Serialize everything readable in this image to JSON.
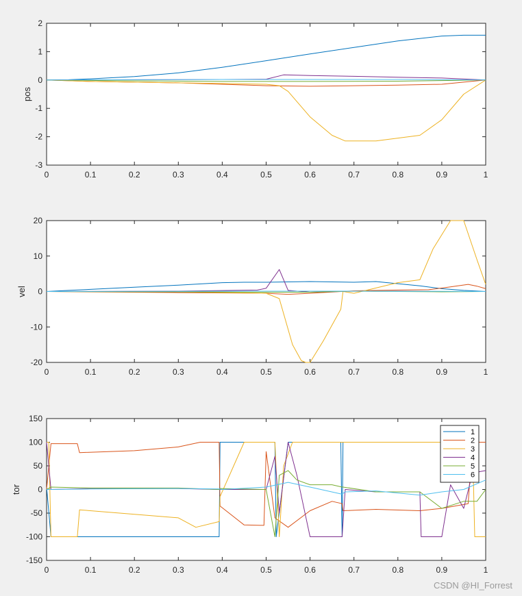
{
  "watermark": "CSDN @HI_Forrest",
  "colors": [
    "#0072BD",
    "#D95319",
    "#EDB120",
    "#7E2F8E",
    "#77AC30",
    "#4DBEEE"
  ],
  "chart_data": [
    {
      "type": "line",
      "ylabel": "pos",
      "xlim": [
        0,
        1
      ],
      "ylim": [
        -3,
        2
      ],
      "xticks": [
        0,
        0.1,
        0.2,
        0.3,
        0.4,
        0.5,
        0.6,
        0.7,
        0.8,
        0.9,
        1
      ],
      "xtick_labels": [
        "0",
        "0.1",
        "0.2",
        "0.3",
        "0.4",
        "0.5",
        "0.6",
        "0.7",
        "0.8",
        "0.9",
        "1"
      ],
      "yticks": [
        -3,
        -2,
        -1,
        0,
        1,
        2
      ],
      "ytick_labels": [
        "-3",
        "-2",
        "-1",
        "0",
        "1",
        "2"
      ],
      "grid": false,
      "legend": null,
      "series": [
        {
          "x": [
            0,
            0.05,
            0.1,
            0.2,
            0.3,
            0.4,
            0.5,
            0.6,
            0.7,
            0.8,
            0.9,
            0.95,
            1
          ],
          "y": [
            0,
            0.01,
            0.04,
            0.12,
            0.25,
            0.45,
            0.68,
            0.92,
            1.15,
            1.38,
            1.55,
            1.58,
            1.58
          ]
        },
        {
          "x": [
            0,
            0.1,
            0.3,
            0.4,
            0.5,
            0.6,
            0.7,
            0.8,
            0.9,
            1
          ],
          "y": [
            0,
            -0.05,
            -0.1,
            -0.15,
            -0.2,
            -0.22,
            -0.2,
            -0.18,
            -0.15,
            0
          ]
        },
        {
          "x": [
            0,
            0.1,
            0.3,
            0.5,
            0.53,
            0.55,
            0.6,
            0.65,
            0.68,
            0.72,
            0.75,
            0.85,
            0.9,
            0.95,
            1
          ],
          "y": [
            0,
            -0.05,
            -0.1,
            -0.15,
            -0.2,
            -0.4,
            -1.3,
            -1.95,
            -2.15,
            -2.15,
            -2.15,
            -1.95,
            -1.4,
            -0.5,
            0
          ]
        },
        {
          "x": [
            0,
            0.2,
            0.4,
            0.5,
            0.54,
            0.6,
            0.7,
            0.8,
            0.9,
            1
          ],
          "y": [
            0,
            0.01,
            0.02,
            0.03,
            0.18,
            0.16,
            0.13,
            0.1,
            0.07,
            0
          ]
        },
        {
          "x": [
            0,
            0.2,
            0.4,
            0.6,
            0.8,
            1
          ],
          "y": [
            0,
            -0.03,
            -0.05,
            -0.05,
            -0.04,
            0
          ]
        },
        {
          "x": [
            0,
            0.2,
            0.4,
            0.6,
            0.8,
            1
          ],
          "y": [
            0,
            0.01,
            0.02,
            0.02,
            0.02,
            0
          ]
        }
      ]
    },
    {
      "type": "line",
      "ylabel": "vel",
      "xlim": [
        0,
        1
      ],
      "ylim": [
        -20,
        20
      ],
      "xticks": [
        0,
        0.1,
        0.2,
        0.3,
        0.4,
        0.5,
        0.6,
        0.7,
        0.8,
        0.9,
        1
      ],
      "xtick_labels": [
        "0",
        "0.1",
        "0.2",
        "0.3",
        "0.4",
        "0.5",
        "0.6",
        "0.7",
        "0.8",
        "0.9",
        "1"
      ],
      "yticks": [
        -20,
        -10,
        0,
        10,
        20
      ],
      "ytick_labels": [
        "-20",
        "-10",
        "0",
        "10",
        "20"
      ],
      "grid": false,
      "legend": null,
      "series": [
        {
          "x": [
            0,
            0.05,
            0.1,
            0.2,
            0.3,
            0.4,
            0.45,
            0.5,
            0.6,
            0.7,
            0.75,
            0.8,
            0.85,
            0.9,
            0.95,
            1
          ],
          "y": [
            0,
            0.3,
            0.6,
            1.2,
            1.8,
            2.5,
            2.6,
            2.6,
            2.8,
            2.6,
            2.8,
            2.2,
            1.6,
            0.8,
            0.3,
            0
          ]
        },
        {
          "x": [
            0,
            0.3,
            0.5,
            0.55,
            0.6,
            0.7,
            0.8,
            0.87,
            0.92,
            0.96,
            0.98,
            1
          ],
          "y": [
            0,
            -0.3,
            -0.5,
            -0.8,
            -0.5,
            0.2,
            0.4,
            0.5,
            1.3,
            2.0,
            1.5,
            0.8
          ]
        },
        {
          "x": [
            0,
            0.3,
            0.5,
            0.53,
            0.56,
            0.58,
            0.59,
            0.6,
            0.63,
            0.67,
            0.675,
            0.7,
            0.8,
            0.85,
            0.88,
            0.92,
            0.95,
            0.98,
            1
          ],
          "y": [
            0,
            -0.1,
            -0.5,
            -2,
            -15,
            -19.5,
            -20,
            -20,
            -14,
            -5,
            0,
            -0.5,
            2.5,
            3.3,
            12,
            20,
            20,
            9,
            2
          ]
        },
        {
          "x": [
            0,
            0.3,
            0.48,
            0.5,
            0.53,
            0.55,
            0.6,
            0.7,
            0.8,
            0.9,
            1
          ],
          "y": [
            0,
            0.1,
            0.4,
            0.9,
            6.2,
            0.3,
            -0.2,
            0.1,
            0.1,
            0,
            0
          ]
        },
        {
          "x": [
            0,
            0.3,
            0.5,
            0.6,
            0.7,
            0.8,
            0.9,
            1
          ],
          "y": [
            0,
            -0.1,
            -0.2,
            -0.2,
            0.1,
            0,
            -0.1,
            0
          ]
        },
        {
          "x": [
            0,
            0.3,
            0.5,
            0.6,
            0.7,
            0.8,
            0.9,
            1
          ],
          "y": [
            0,
            0.05,
            0.1,
            0.1,
            0.1,
            0.05,
            0.05,
            0
          ]
        }
      ]
    },
    {
      "type": "line",
      "ylabel": "tor",
      "xlim": [
        0,
        1
      ],
      "ylim": [
        -150,
        150
      ],
      "xticks": [
        0,
        0.1,
        0.2,
        0.3,
        0.4,
        0.5,
        0.6,
        0.7,
        0.8,
        0.9,
        1
      ],
      "xtick_labels": [
        "0",
        "0.1",
        "0.2",
        "0.3",
        "0.4",
        "0.5",
        "0.6",
        "0.7",
        "0.8",
        "0.9",
        "1"
      ],
      "yticks": [
        -150,
        -100,
        -50,
        0,
        50,
        100,
        150
      ],
      "ytick_labels": [
        "-150",
        "-100",
        "-50",
        "0",
        "50",
        "100",
        "150"
      ],
      "grid": false,
      "legend": "top-right",
      "legend_entries": [
        "1",
        "2",
        "3",
        "4",
        "5",
        "6"
      ],
      "series": [
        {
          "name": "1",
          "x": [
            0,
            0.01,
            0.07,
            0.2,
            0.393,
            0.395,
            0.5,
            0.52,
            0.523,
            0.55,
            0.6,
            0.67,
            0.673,
            0.675,
            0.74,
            0.75,
            0.753,
            0.85,
            0.87,
            0.9,
            0.95,
            1
          ],
          "y": [
            5,
            -100,
            -100,
            -100,
            -100,
            100,
            100,
            100,
            -100,
            100,
            100,
            100,
            -100,
            100,
            100,
            100,
            100,
            100,
            100,
            100,
            100,
            100
          ]
        },
        {
          "name": "2",
          "x": [
            0,
            0.01,
            0.07,
            0.075,
            0.2,
            0.3,
            0.35,
            0.393,
            0.395,
            0.45,
            0.495,
            0.5,
            0.52,
            0.55,
            0.6,
            0.65,
            0.673,
            0.675,
            0.75,
            0.85,
            0.9,
            0.96,
            0.97,
            1
          ],
          "y": [
            0,
            97,
            97,
            78,
            82,
            90,
            100,
            100,
            -35,
            -75,
            -76,
            80,
            -60,
            -80,
            -45,
            -25,
            -30,
            -45,
            -42,
            -45,
            -40,
            -30,
            100,
            100
          ]
        },
        {
          "name": "3",
          "x": [
            0,
            0.005,
            0.01,
            0.07,
            0.075,
            0.3,
            0.34,
            0.393,
            0.395,
            0.45,
            0.5,
            0.52,
            0.53,
            0.54,
            0.56,
            0.6,
            0.673,
            0.675,
            0.75,
            0.85,
            0.95,
            0.97,
            0.975,
            1
          ],
          "y": [
            100,
            100,
            -100,
            -100,
            -43,
            -60,
            -80,
            -68,
            -15,
            100,
            100,
            100,
            -100,
            50,
            100,
            100,
            100,
            100,
            100,
            100,
            100,
            100,
            -100,
            -100
          ]
        },
        {
          "name": "4",
          "x": [
            0,
            0.01,
            0.1,
            0.3,
            0.393,
            0.395,
            0.5,
            0.52,
            0.53,
            0.55,
            0.57,
            0.6,
            0.67,
            0.673,
            0.68,
            0.75,
            0.85,
            0.853,
            0.9,
            0.92,
            0.95,
            0.97,
            1
          ],
          "y": [
            100,
            0,
            2,
            2,
            0,
            0,
            0,
            70,
            -50,
            100,
            30,
            -100,
            -100,
            -100,
            0,
            -5,
            -5,
            -100,
            -100,
            10,
            -40,
            35,
            40
          ]
        },
        {
          "name": "5",
          "x": [
            0,
            0.01,
            0.1,
            0.3,
            0.393,
            0.395,
            0.5,
            0.52,
            0.53,
            0.55,
            0.57,
            0.6,
            0.65,
            0.673,
            0.675,
            0.75,
            0.85,
            0.9,
            0.95,
            0.98,
            1
          ],
          "y": [
            0,
            5,
            3,
            3,
            0,
            2,
            0,
            -100,
            30,
            40,
            20,
            10,
            10,
            5,
            5,
            -5,
            -5,
            -40,
            -25,
            -25,
            0
          ]
        },
        {
          "name": "6",
          "x": [
            0,
            0.1,
            0.3,
            0.393,
            0.4,
            0.5,
            0.55,
            0.6,
            0.673,
            0.68,
            0.75,
            0.85,
            0.9,
            0.95,
            1
          ],
          "y": [
            0,
            1,
            2,
            1,
            0,
            5,
            15,
            5,
            -10,
            -5,
            -3,
            -12,
            -5,
            0,
            20
          ]
        }
      ]
    }
  ]
}
